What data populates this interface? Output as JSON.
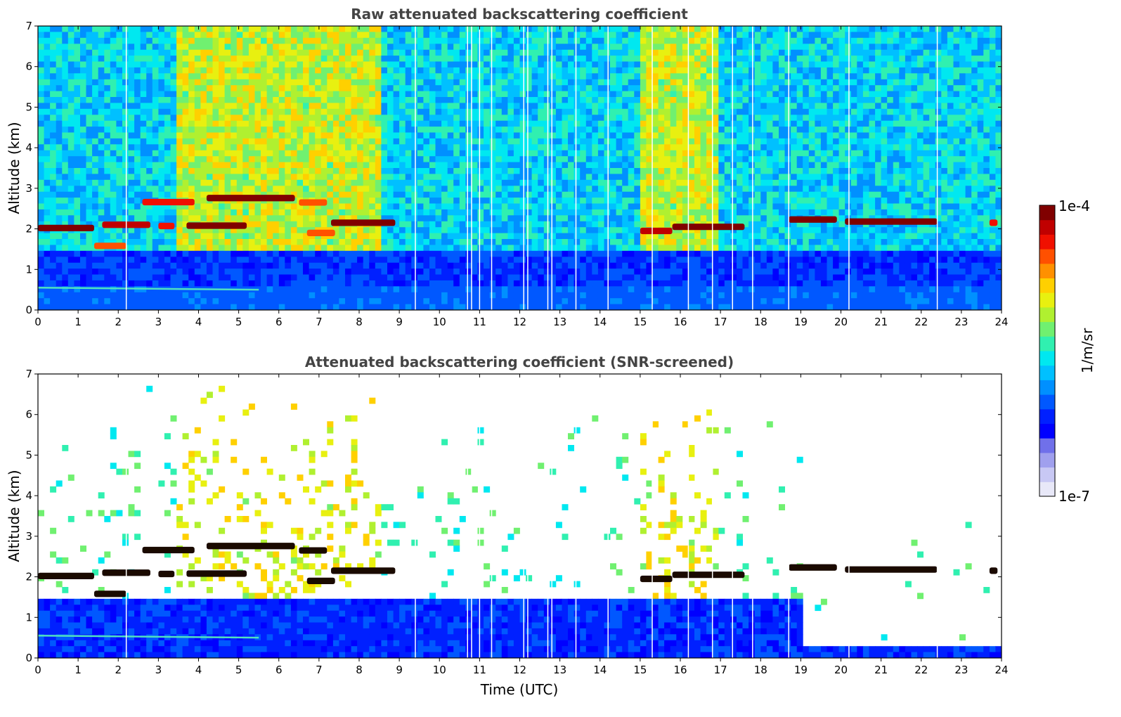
{
  "chart_data": [
    {
      "type": "heatmap",
      "title": "Raw attenuated backscattering coefficient",
      "xlabel": "",
      "ylabel": "Altitude (km)",
      "xlim": [
        0,
        24
      ],
      "ylim": [
        0,
        7
      ],
      "x_ticks": [
        "0",
        "1",
        "2",
        "3",
        "4",
        "5",
        "6",
        "7",
        "8",
        "9",
        "10",
        "11",
        "12",
        "13",
        "14",
        "15",
        "16",
        "17",
        "18",
        "19",
        "20",
        "21",
        "22",
        "23",
        "24"
      ],
      "y_ticks": [
        "0",
        "1",
        "2",
        "3",
        "4",
        "5",
        "6",
        "7"
      ],
      "boundary_layer_km": 0.55,
      "cloud_layers": [
        {
          "t_start": 0.0,
          "t_end": 1.4,
          "alt_km": 2.02,
          "intensity": 1.0
        },
        {
          "t_start": 1.6,
          "t_end": 2.8,
          "alt_km": 2.1,
          "intensity": 0.95
        },
        {
          "t_start": 3.0,
          "t_end": 3.4,
          "alt_km": 2.07,
          "intensity": 0.9
        },
        {
          "t_start": 3.7,
          "t_end": 5.2,
          "alt_km": 2.08,
          "intensity": 1.0
        },
        {
          "t_start": 1.4,
          "t_end": 2.2,
          "alt_km": 1.58,
          "intensity": 0.85
        },
        {
          "t_start": 2.6,
          "t_end": 3.9,
          "alt_km": 2.66,
          "intensity": 0.9
        },
        {
          "t_start": 4.2,
          "t_end": 6.4,
          "alt_km": 2.76,
          "intensity": 1.0
        },
        {
          "t_start": 6.5,
          "t_end": 7.2,
          "alt_km": 2.65,
          "intensity": 0.85
        },
        {
          "t_start": 6.7,
          "t_end": 7.4,
          "alt_km": 1.9,
          "intensity": 0.85
        },
        {
          "t_start": 7.3,
          "t_end": 8.9,
          "alt_km": 2.15,
          "intensity": 1.0
        },
        {
          "t_start": 15.0,
          "t_end": 15.8,
          "alt_km": 1.95,
          "intensity": 0.95
        },
        {
          "t_start": 15.8,
          "t_end": 17.6,
          "alt_km": 2.05,
          "intensity": 1.0
        },
        {
          "t_start": 18.7,
          "t_end": 19.9,
          "alt_km": 2.23,
          "intensity": 1.0
        },
        {
          "t_start": 20.1,
          "t_end": 22.4,
          "alt_km": 2.18,
          "intensity": 1.0
        },
        {
          "t_start": 23.7,
          "t_end": 23.9,
          "alt_km": 2.15,
          "intensity": 0.9
        }
      ],
      "aerosol_plumes": [
        {
          "t_start": 3.5,
          "t_end": 7.2,
          "alt_top_km": 7.0
        },
        {
          "t_start": 7.2,
          "t_end": 8.5,
          "alt_top_km": 7.0
        },
        {
          "t_start": 15.0,
          "t_end": 17.0,
          "alt_top_km": 7.0
        }
      ],
      "data_gaps_utc": [
        2.2,
        9.4,
        10.7,
        10.8,
        11.0,
        11.3,
        12.1,
        12.2,
        12.7,
        12.8,
        13.4,
        14.2,
        15.3,
        16.2,
        16.8,
        17.3,
        17.8,
        18.7,
        20.2,
        22.4
      ]
    },
    {
      "type": "heatmap",
      "title": "Attenuated backscattering coefficient (SNR-screened)",
      "xlabel": "Time (UTC)",
      "ylabel": "Altitude (km)",
      "xlim": [
        0,
        24
      ],
      "ylim": [
        0,
        7
      ],
      "x_ticks": [
        "0",
        "1",
        "2",
        "3",
        "4",
        "5",
        "6",
        "7",
        "8",
        "9",
        "10",
        "11",
        "12",
        "13",
        "14",
        "15",
        "16",
        "17",
        "18",
        "19",
        "20",
        "21",
        "22",
        "23",
        "24"
      ],
      "y_ticks": [
        "0",
        "1",
        "2",
        "3",
        "4",
        "5",
        "6",
        "7"
      ],
      "screened_top_km_after_19utc": 0.33
    }
  ],
  "colorbar": {
    "label": "1/m/sr",
    "max_label": "1e-4",
    "min_label": "1e-7",
    "scale": "log",
    "colors": [
      "#e8e8f8",
      "#c8c8f4",
      "#a0a0ee",
      "#7070ea",
      "#0000ff",
      "#0020ff",
      "#0058ff",
      "#0090ff",
      "#00c0ff",
      "#00e8f0",
      "#30f0b0",
      "#70f070",
      "#b0f030",
      "#e8f010",
      "#ffd000",
      "#ff9000",
      "#ff5000",
      "#f01000",
      "#c00000",
      "#800000"
    ]
  }
}
